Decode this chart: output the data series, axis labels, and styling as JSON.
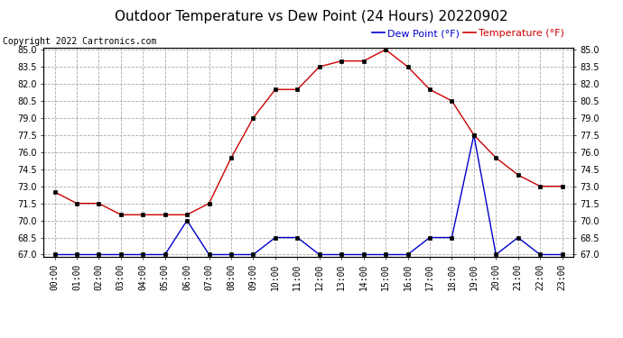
{
  "title": "Outdoor Temperature vs Dew Point (24 Hours) 20220902",
  "copyright": "Copyright 2022 Cartronics.com",
  "legend_dew": "Dew Point (°F)",
  "legend_temp": "Temperature (°F)",
  "hours": [
    "00:00",
    "01:00",
    "02:00",
    "03:00",
    "04:00",
    "05:00",
    "06:00",
    "07:00",
    "08:00",
    "09:00",
    "10:00",
    "11:00",
    "12:00",
    "13:00",
    "14:00",
    "15:00",
    "16:00",
    "17:00",
    "18:00",
    "19:00",
    "20:00",
    "21:00",
    "22:00",
    "23:00"
  ],
  "temperature": [
    72.5,
    71.5,
    71.5,
    70.5,
    70.5,
    70.5,
    70.5,
    71.5,
    75.5,
    79.0,
    81.5,
    81.5,
    83.5,
    84.0,
    84.0,
    85.0,
    83.5,
    81.5,
    80.5,
    77.5,
    75.5,
    74.0,
    73.0,
    73.0
  ],
  "dew_point": [
    67.0,
    67.0,
    67.0,
    67.0,
    67.0,
    67.0,
    70.0,
    67.0,
    67.0,
    67.0,
    68.5,
    68.5,
    67.0,
    67.0,
    67.0,
    67.0,
    67.0,
    68.5,
    68.5,
    77.5,
    67.0,
    68.5,
    67.0,
    67.0
  ],
  "temp_color": "#cc0000",
  "dew_color": "#0000cc",
  "ylim_min": 67.0,
  "ylim_max": 85.0,
  "yticks": [
    67.0,
    68.5,
    70.0,
    71.5,
    73.0,
    74.5,
    76.0,
    77.5,
    79.0,
    80.5,
    82.0,
    83.5,
    85.0
  ],
  "bg_color": "#ffffff",
  "grid_color": "#aaaaaa",
  "title_fontsize": 11,
  "copyright_fontsize": 7,
  "legend_fontsize": 8,
  "axis_fontsize": 7
}
